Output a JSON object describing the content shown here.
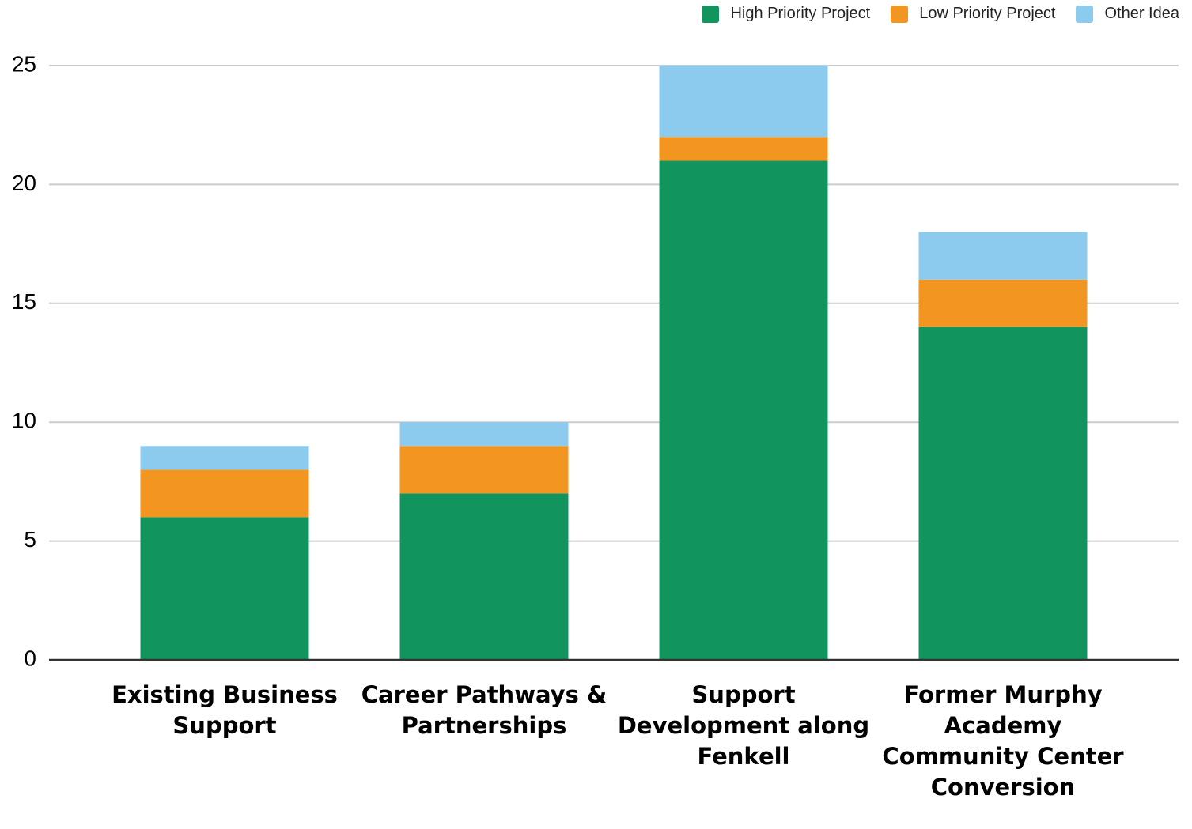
{
  "chart_data": {
    "type": "stacked_bar",
    "categories": [
      "Existing Business Support",
      "Career Pathways & Partnerships",
      "Support Development along Fenkell",
      "Former Murphy Academy Community Center Conversion"
    ],
    "series": [
      {
        "name": "High Priority Project",
        "color": "#12945f",
        "values": [
          6,
          7,
          21,
          14
        ]
      },
      {
        "name": "Low Priority Project",
        "color": "#f39621",
        "values": [
          2,
          2,
          1,
          2
        ]
      },
      {
        "name": "Other Idea",
        "color": "#8ccbee",
        "values": [
          1,
          1,
          3,
          2
        ]
      }
    ],
    "ylim": [
      0,
      25
    ],
    "yticks": [
      0,
      5,
      10,
      15,
      20,
      25
    ],
    "grid": true,
    "legend": "top-right"
  }
}
